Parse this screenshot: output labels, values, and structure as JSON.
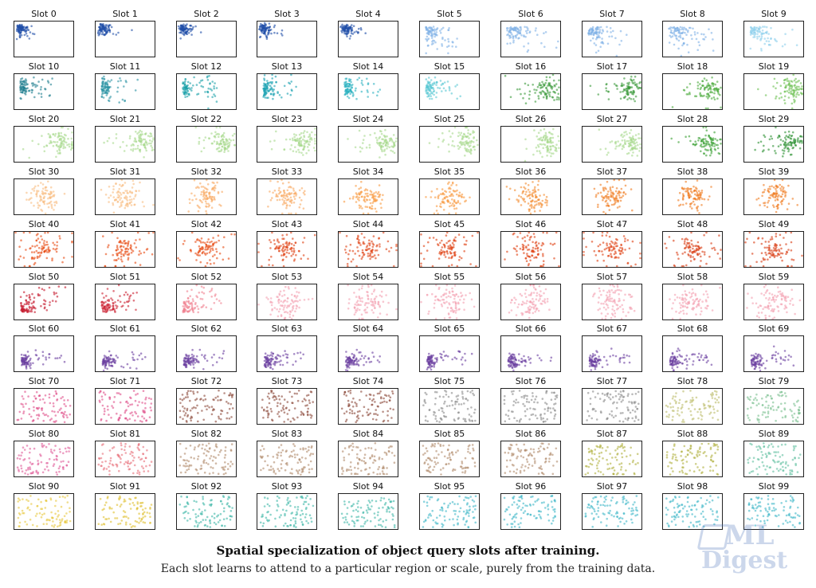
{
  "caption": {
    "title": "Spatial specialization of object query slots after training.",
    "subtitle": "Each slot learns to attend to a particular region or scale, purely from the training data."
  },
  "watermark": {
    "line1": "ML",
    "line2": "Digest"
  },
  "chart_data": {
    "type": "scatter",
    "panel_count": 100,
    "columns": 10,
    "rows": 10,
    "axes_visible": false,
    "titles": [
      "Slot 0",
      "Slot 1",
      "Slot 2",
      "Slot 3",
      "Slot 4",
      "Slot 5",
      "Slot 6",
      "Slot 7",
      "Slot 8",
      "Slot 9",
      "Slot 10",
      "Slot 11",
      "Slot 12",
      "Slot 13",
      "Slot 14",
      "Slot 15",
      "Slot 16",
      "Slot 17",
      "Slot 18",
      "Slot 19",
      "Slot 20",
      "Slot 21",
      "Slot 22",
      "Slot 23",
      "Slot 24",
      "Slot 25",
      "Slot 26",
      "Slot 27",
      "Slot 28",
      "Slot 29",
      "Slot 30",
      "Slot 31",
      "Slot 32",
      "Slot 33",
      "Slot 34",
      "Slot 35",
      "Slot 36",
      "Slot 37",
      "Slot 38",
      "Slot 39",
      "Slot 40",
      "Slot 41",
      "Slot 42",
      "Slot 43",
      "Slot 44",
      "Slot 45",
      "Slot 46",
      "Slot 47",
      "Slot 48",
      "Slot 49",
      "Slot 50",
      "Slot 51",
      "Slot 52",
      "Slot 53",
      "Slot 54",
      "Slot 55",
      "Slot 56",
      "Slot 57",
      "Slot 58",
      "Slot 59",
      "Slot 60",
      "Slot 61",
      "Slot 62",
      "Slot 63",
      "Slot 64",
      "Slot 65",
      "Slot 66",
      "Slot 67",
      "Slot 68",
      "Slot 69",
      "Slot 70",
      "Slot 71",
      "Slot 72",
      "Slot 73",
      "Slot 74",
      "Slot 75",
      "Slot 76",
      "Slot 77",
      "Slot 78",
      "Slot 79",
      "Slot 80",
      "Slot 81",
      "Slot 82",
      "Slot 83",
      "Slot 84",
      "Slot 85",
      "Slot 86",
      "Slot 87",
      "Slot 88",
      "Slot 89",
      "Slot 90",
      "Slot 91",
      "Slot 92",
      "Slot 93",
      "Slot 94",
      "Slot 95",
      "Slot 96",
      "Slot 97",
      "Slot 98",
      "Slot 99"
    ],
    "colors": [
      "#1f4fa8",
      "#1f4fa8",
      "#1f4fa8",
      "#1f4fa8",
      "#1f4fa8",
      "#7fb0e6",
      "#7fb0e6",
      "#7fb0e6",
      "#7fb0e6",
      "#8fd0ec",
      "#1f7f8f",
      "#2a93a3",
      "#1aa0a8",
      "#18a0b0",
      "#2ab0c0",
      "#5ac8d4",
      "#3a9a3a",
      "#3a9a3a",
      "#4aaa3a",
      "#6ac050",
      "#a6d98c",
      "#a6d98c",
      "#a6d98c",
      "#a6d98c",
      "#a6d98c",
      "#a6d98c",
      "#a6d98c",
      "#a6d98c",
      "#3aa034",
      "#2a9030",
      "#f9bd80",
      "#f9bd80",
      "#f8a860",
      "#f8a860",
      "#f89a40",
      "#f89a40",
      "#f48c30",
      "#f07c20",
      "#f07c20",
      "#f07c20",
      "#e84a10",
      "#e84a10",
      "#e84a10",
      "#e04010",
      "#e04010",
      "#e04010",
      "#e04010",
      "#e04010",
      "#d83a10",
      "#d83a10",
      "#c4162a",
      "#cc2030",
      "#f08090",
      "#f4a0b0",
      "#f4a0b0",
      "#f4a0b0",
      "#f4a0b0",
      "#f4a0b0",
      "#f4a0b0",
      "#f4a0b0",
      "#6a3fa0",
      "#6a3fa0",
      "#6a3fa0",
      "#6a3fa0",
      "#6a3fa0",
      "#6a3fa0",
      "#6a3fa0",
      "#6a3fa0",
      "#6a3fa0",
      "#6a3fa0",
      "#e0508a",
      "#e0508a",
      "#8c4a3a",
      "#8c4a3a",
      "#8c4a3a",
      "#8a8a8a",
      "#8a8a8a",
      "#8a8a8a",
      "#bdbd6a",
      "#7ac090",
      "#e05a98",
      "#e8707a",
      "#b08a6a",
      "#b08a6a",
      "#b08a6a",
      "#b08a6a",
      "#b08a6a",
      "#b0b040",
      "#b0b040",
      "#60c0a0",
      "#e8c840",
      "#e0c030",
      "#40b8a8",
      "#40b8a8",
      "#40b8a8",
      "#40b8c8",
      "#40b8c8",
      "#40b8c8",
      "#40b8c8",
      "#40b8c8"
    ],
    "patterns": [
      "tl-tight",
      "tl-tight",
      "tl-tight",
      "tl-tight",
      "tl-tight",
      "tl-spread",
      "tl-spread",
      "tl-spread",
      "tl-spread",
      "tl-spread",
      "left-tail",
      "left-tail",
      "left-tail",
      "left-tail",
      "left-tail",
      "left-tail",
      "right",
      "right",
      "right",
      "right",
      "right",
      "right",
      "right",
      "right",
      "right",
      "right",
      "right",
      "right",
      "right",
      "right",
      "center",
      "center",
      "center",
      "center",
      "center",
      "center",
      "center",
      "center",
      "center",
      "center",
      "center-dense",
      "center-dense",
      "center-dense",
      "center-dense",
      "center-dense",
      "center-dense",
      "center-dense",
      "center-dense",
      "center-dense",
      "center-dense",
      "bl-corner",
      "bl-corner",
      "bl-corner",
      "center-wide",
      "center-wide",
      "center-wide",
      "center-wide",
      "center-wide",
      "center-wide",
      "center-wide",
      "bl-tail",
      "bl-tail",
      "bl-tail",
      "bl-tail",
      "bl-tail",
      "bl-tail",
      "bl-tail",
      "bl-tail",
      "bl-tail",
      "bl-tail",
      "uniform",
      "uniform",
      "uniform",
      "uniform",
      "uniform",
      "uniform",
      "uniform",
      "uniform",
      "uniform",
      "uniform",
      "uniform",
      "uniform",
      "uniform",
      "uniform",
      "uniform",
      "uniform",
      "uniform",
      "uniform",
      "uniform",
      "uniform",
      "uniform",
      "uniform",
      "uniform",
      "uniform",
      "uniform",
      "uniform",
      "uniform",
      "uniform",
      "uniform",
      "uniform"
    ],
    "points_per_panel": 90
  }
}
